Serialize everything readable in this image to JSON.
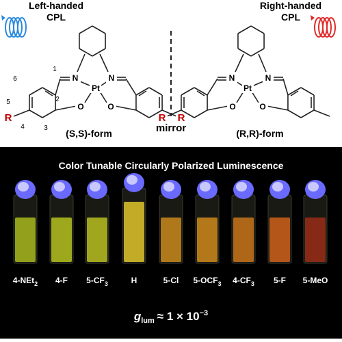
{
  "left": {
    "heading": [
      "Left-handed",
      "CPL"
    ],
    "form": "(S,S)-form",
    "atoms": [
      "N",
      "N",
      "Pt",
      "O",
      "O",
      "R",
      "R"
    ],
    "numbers": [
      "1",
      "2",
      "3",
      "4",
      "5",
      "6"
    ]
  },
  "right": {
    "heading": [
      "Right-handed",
      "CPL"
    ],
    "form": "(R,R)-form",
    "atoms": [
      "N",
      "N",
      "Pt",
      "O",
      "O",
      "R"
    ]
  },
  "mirror": "mirror",
  "panel": {
    "title": "Color Tunable Circularly Polarized Luminescence",
    "vials": [
      {
        "label": "4-NEt",
        "sub": "2",
        "color": "#a8b81c"
      },
      {
        "label": "4-F",
        "color": "#b6c21e"
      },
      {
        "label": "5-CF",
        "sub": "3",
        "color": "#b9c020"
      },
      {
        "label": "H",
        "color": "#e0c62a"
      },
      {
        "label": "5-Cl",
        "color": "#c98a1c"
      },
      {
        "label": "5-OCF",
        "sub": "3",
        "color": "#cf8a1a"
      },
      {
        "label": "4-CF",
        "sub": "3",
        "color": "#c9761a"
      },
      {
        "label": "5-F",
        "color": "#d0601a"
      },
      {
        "label": "5-MeO",
        "color": "#9a2e18"
      }
    ],
    "formula": {
      "symbol": "g",
      "sub": "lum",
      "text": "≈ 1 × 10",
      "sup": "−3"
    }
  }
}
